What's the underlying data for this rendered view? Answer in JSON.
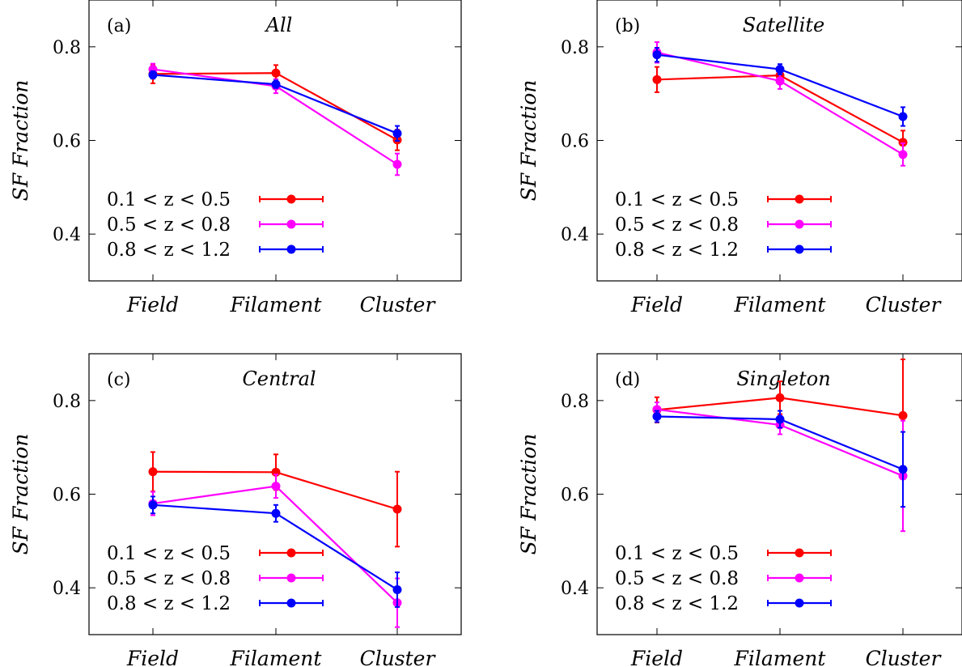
{
  "chart_data": [
    {
      "type": "line",
      "panel_label": "(a)",
      "title": "All",
      "ylabel": "SF Fraction",
      "categories": [
        "Field",
        "Filament",
        "Cluster"
      ],
      "ylim": [
        0.3,
        0.9
      ],
      "yticks": [
        0.4,
        0.6,
        0.8
      ],
      "ytick_labels": [
        "0.4",
        "0.6",
        "0.8"
      ],
      "legend_position": "bottom-left",
      "series": [
        {
          "name": "0.1 < z < 0.5",
          "color": "#ff0000",
          "values": [
            0.742,
            0.744,
            0.601
          ],
          "errors": [
            0.02,
            0.017,
            0.022
          ]
        },
        {
          "name": "0.5 < z < 0.8",
          "color": "#ff00ff",
          "values": [
            0.752,
            0.716,
            0.549
          ],
          "errors": [
            0.012,
            0.015,
            0.023
          ]
        },
        {
          "name": "0.8 < z < 1.2",
          "color": "#0000ff",
          "values": [
            0.74,
            0.72,
            0.615
          ],
          "errors": [
            0.008,
            0.008,
            0.016
          ]
        }
      ]
    },
    {
      "type": "line",
      "panel_label": "(b)",
      "title": "Satellite",
      "ylabel": "SF Fraction",
      "categories": [
        "Field",
        "Filament",
        "Cluster"
      ],
      "ylim": [
        0.3,
        0.9
      ],
      "yticks": [
        0.4,
        0.6,
        0.8
      ],
      "ytick_labels": [
        "0.4",
        "0.6",
        "0.8"
      ],
      "legend_position": "bottom-left",
      "series": [
        {
          "name": "0.1 < z < 0.5",
          "color": "#ff0000",
          "values": [
            0.73,
            0.739,
            0.596
          ],
          "errors": [
            0.027,
            0.015,
            0.025
          ]
        },
        {
          "name": "0.5 < z < 0.8",
          "color": "#ff00ff",
          "values": [
            0.788,
            0.727,
            0.57
          ],
          "errors": [
            0.022,
            0.017,
            0.024
          ]
        },
        {
          "name": "0.8 < z < 1.2",
          "color": "#0000ff",
          "values": [
            0.783,
            0.752,
            0.651
          ],
          "errors": [
            0.015,
            0.011,
            0.02
          ]
        }
      ]
    },
    {
      "type": "line",
      "panel_label": "(c)",
      "title": "Central",
      "ylabel": "SF Fraction",
      "categories": [
        "Field",
        "Filament",
        "Cluster"
      ],
      "ylim": [
        0.3,
        0.9
      ],
      "yticks": [
        0.4,
        0.6,
        0.8
      ],
      "ytick_labels": [
        "0.4",
        "0.6",
        "0.8"
      ],
      "legend_position": "bottom-left",
      "series": [
        {
          "name": "0.1 < z < 0.5",
          "color": "#ff0000",
          "values": [
            0.648,
            0.647,
            0.568
          ],
          "errors": [
            0.042,
            0.038,
            0.08
          ]
        },
        {
          "name": "0.5 < z < 0.8",
          "color": "#ff00ff",
          "values": [
            0.58,
            0.617,
            0.368
          ],
          "errors": [
            0.025,
            0.025,
            0.052
          ]
        },
        {
          "name": "0.8 < z < 1.2",
          "color": "#0000ff",
          "values": [
            0.577,
            0.559,
            0.396
          ],
          "errors": [
            0.018,
            0.018,
            0.037
          ]
        }
      ]
    },
    {
      "type": "line",
      "panel_label": "(d)",
      "title": "Singleton",
      "ylabel": "SF Fraction",
      "categories": [
        "Field",
        "Filament",
        "Cluster"
      ],
      "ylim": [
        0.3,
        0.9
      ],
      "yticks": [
        0.4,
        0.6,
        0.8
      ],
      "ytick_labels": [
        "0.4",
        "0.6",
        "0.8"
      ],
      "legend_position": "bottom-left",
      "series": [
        {
          "name": "0.1 < z < 0.5",
          "color": "#ff0000",
          "values": [
            0.78,
            0.806,
            0.768
          ],
          "errors": [
            0.027,
            0.035,
            0.12
          ]
        },
        {
          "name": "0.5 < z < 0.8",
          "color": "#ff00ff",
          "values": [
            0.781,
            0.748,
            0.639
          ],
          "errors": [
            0.015,
            0.02,
            0.118
          ]
        },
        {
          "name": "0.8 < z < 1.2",
          "color": "#0000ff",
          "values": [
            0.766,
            0.76,
            0.653
          ],
          "errors": [
            0.012,
            0.018,
            0.08
          ]
        }
      ]
    }
  ]
}
